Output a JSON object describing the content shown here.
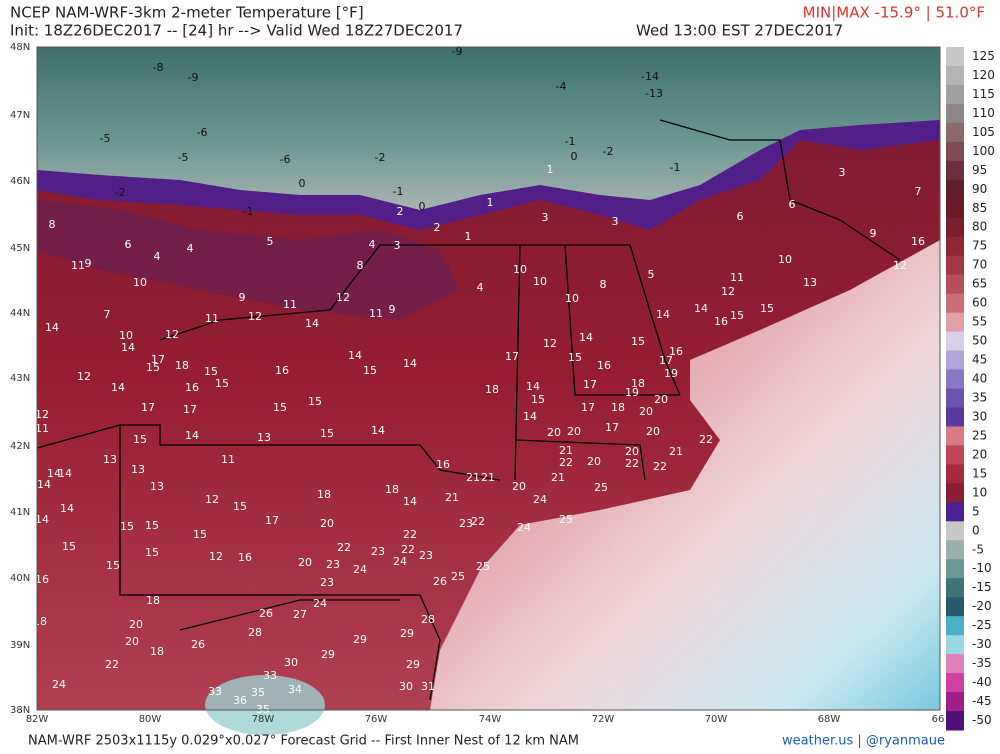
{
  "header": {
    "title": "NCEP NAM-WRF-3km 2-meter Temperature [°F]",
    "init": "Init: 18Z26DEC2017 -- [24] hr --> Valid Wed 18Z27DEC2017",
    "valid": "Wed 13:00 EST 27DEC2017",
    "minmax": "MIN|MAX -15.9° | 51.0°F"
  },
  "map": {
    "lat_labels": [
      "48N",
      "47N",
      "46N",
      "45N",
      "44N",
      "43N",
      "42N",
      "41N",
      "40N",
      "39N",
      "38N"
    ],
    "lon_labels": [
      "82W",
      "80W",
      "78W",
      "76W",
      "74W",
      "72W",
      "70W",
      "68W",
      "66"
    ],
    "points": [
      -8,
      -9,
      -5,
      -6,
      -5,
      -6,
      -2,
      0,
      -1,
      -2,
      -1,
      -9,
      -4,
      -14,
      -13,
      -1,
      0,
      -2,
      -1,
      1,
      1,
      2,
      0,
      3,
      3,
      5,
      4,
      4,
      3,
      1,
      2,
      8,
      6,
      4,
      11,
      9,
      10,
      8,
      10,
      10,
      10,
      11,
      12,
      16,
      9,
      7,
      3,
      6,
      6,
      4,
      10,
      8,
      5,
      9,
      11,
      12,
      11,
      12,
      11,
      9,
      7,
      14,
      10,
      12,
      14,
      12,
      13,
      15,
      14,
      14,
      16,
      15,
      14,
      17,
      15,
      18,
      15,
      16,
      14,
      15,
      14,
      12,
      14,
      15,
      15,
      17,
      16,
      16,
      17,
      19,
      12,
      14,
      15,
      16,
      18,
      14,
      18,
      17,
      19,
      15,
      15,
      15,
      17,
      17,
      12,
      11,
      14,
      17,
      18,
      20,
      20,
      17,
      14,
      15,
      13,
      14,
      15,
      20,
      20,
      20,
      22,
      11,
      13,
      16,
      13,
      21,
      22,
      20,
      20,
      22,
      22,
      21,
      14,
      14,
      14,
      21,
      21,
      13,
      18,
      20,
      21,
      25,
      24,
      12,
      15,
      18,
      14,
      21,
      24,
      25,
      14,
      14,
      17,
      20,
      15,
      15,
      15,
      23,
      22,
      15,
      15,
      12,
      16,
      22,
      23,
      22,
      22,
      20,
      23,
      16,
      15,
      24,
      24,
      23,
      25,
      26,
      25,
      23,
      18,
      24,
      26,
      27,
      28,
      29,
      18,
      20,
      28,
      29,
      20,
      18,
      26,
      29,
      30,
      29,
      22,
      33,
      24,
      33,
      35,
      34,
      36,
      35,
      30,
      31
    ]
  },
  "colorbar": {
    "ticks": [
      125,
      120,
      115,
      110,
      105,
      100,
      95,
      90,
      85,
      80,
      75,
      70,
      65,
      60,
      55,
      50,
      45,
      40,
      35,
      30,
      25,
      20,
      15,
      10,
      5,
      0,
      -5,
      -10,
      -15,
      -20,
      -25,
      -30,
      -35,
      -40,
      -45,
      -50
    ],
    "colors": [
      "#c8c8c8",
      "#b4b4b4",
      "#a0a0a0",
      "#8c8686",
      "#8a6a6a",
      "#7e4c55",
      "#6e3040",
      "#5e1e2a",
      "#6a1a28",
      "#7c1e2c",
      "#902834",
      "#a43842",
      "#b84e58",
      "#cc6c74",
      "#e0a0a6",
      "#d8d0e8",
      "#b0a4d8",
      "#8a78c4",
      "#6a54b0",
      "#5a3aa0",
      "#d87a86",
      "#c04856",
      "#a42a3c",
      "#8a1e34",
      "#4a2294",
      "#c8c8c8",
      "#9ab0ac",
      "#6e9894",
      "#3e7474",
      "#2a5a70",
      "#4ab0c8",
      "#9ad8e4",
      "#e080b8",
      "#d040a0",
      "#a01e8a",
      "#50107a"
    ]
  },
  "footer": {
    "left": "NAM-WRF 2503x1115y 0.029°x0.027° Forecast Grid -- First Inner Nest of 12 km NAM",
    "right": "weather.us | @ryanmaue"
  }
}
